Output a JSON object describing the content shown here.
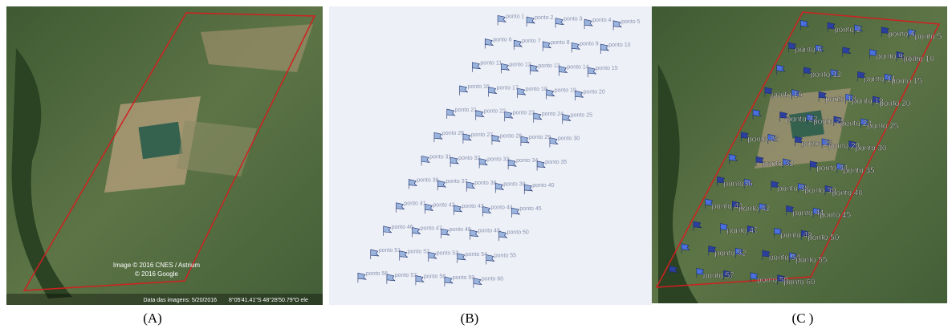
{
  "panels": [
    {
      "caption": "(A)",
      "texts": [
        "Image © 2016 CNES / Astrium",
        "© 2016 Google",
        "Data das imagens: 5/20/2016",
        "8°05'41.41\"S  48°28'50.79\"O  ele"
      ]
    },
    {
      "caption": "(B)",
      "labels": [
        "ponto 1",
        "ponto 2",
        "ponto 3",
        "ponto 4",
        "ponto 5",
        "ponto 6",
        "ponto 7",
        "ponto 8",
        "ponto 9",
        "ponto 10",
        "ponto 11",
        "ponto 12",
        "ponto 13",
        "ponto 14",
        "ponto 15",
        "ponto 16",
        "ponto 17",
        "ponto 18",
        "ponto 19",
        "ponto 20",
        "ponto 21",
        "ponto 22",
        "ponto 23",
        "ponto 24",
        "ponto 25",
        "ponto 26",
        "ponto 27",
        "ponto 28",
        "ponto 29",
        "ponto 30",
        "ponto 31",
        "ponto 32",
        "ponto 33",
        "ponto 34",
        "ponto 35",
        "ponto 36",
        "ponto 37",
        "ponto 38",
        "ponto 39",
        "ponto 40",
        "ponto 41",
        "ponto 42",
        "ponto 43",
        "ponto 44",
        "ponto 45",
        "ponto 46",
        "ponto 47",
        "ponto 48",
        "ponto 49",
        "ponto 50",
        "ponto 51",
        "ponto 52",
        "ponto 53",
        "ponto 54",
        "ponto 55",
        "ponto 56",
        "ponto 57",
        "ponto 58",
        "ponto 59",
        "ponto 60"
      ]
    },
    {
      "caption": "(C )",
      "labels": [
        "ponto 2",
        "ponto 4",
        "ponto 5",
        "ponto 6",
        "010",
        "ponto 9",
        "ponto 10",
        "ponto 12",
        "ponto 14",
        "ponto 15",
        "ponto 16",
        "ponto 18",
        "ponto 19",
        "ponto 20",
        "ponto 22",
        "ponto 23",
        "ponto 24",
        "ponto 25",
        "ponto 26",
        "ponto 28",
        "ponto 29",
        "ponto 30",
        "ponto 32",
        "ponto 34",
        "ponto 35",
        "ponto36",
        "ponto 38",
        "ponto 39",
        "ponto 40",
        "ponto 41",
        "ponto 42",
        "ponto 44",
        "ponto 45",
        "ponto 47",
        "ponto 49",
        "ponto 50",
        "ponto 52",
        "ponto 54",
        "ponto 55",
        "ponto 57",
        "ponto 59",
        "ponto 60"
      ]
    }
  ]
}
